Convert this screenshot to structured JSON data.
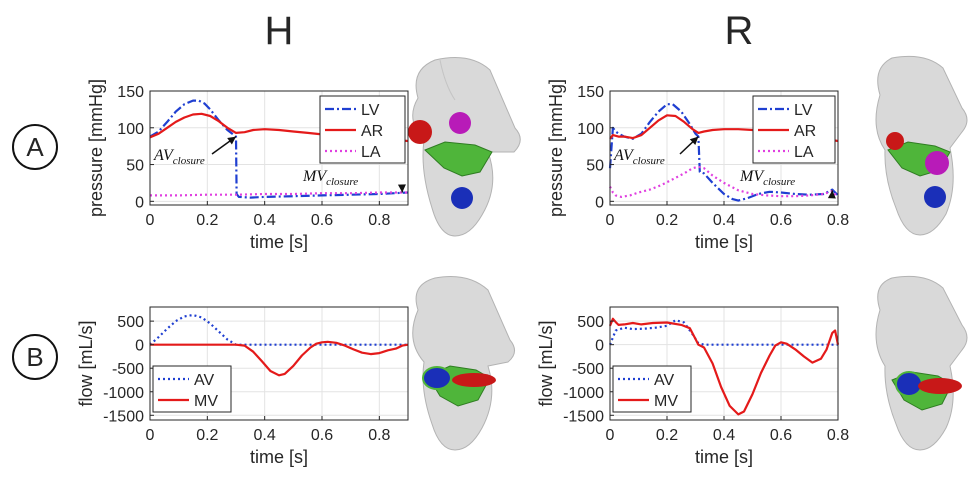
{
  "columns": [
    "H",
    "R"
  ],
  "rows": [
    "A",
    "B"
  ],
  "chart_data": [
    {
      "id": "H-pressure",
      "type": "line",
      "xlabel": "time [s]",
      "ylabel": "pressure [mmHg]",
      "xlim": [
        0,
        0.9
      ],
      "ylim": [
        -5,
        150
      ],
      "xticks": [
        0,
        0.2,
        0.4,
        0.6,
        0.8
      ],
      "yticks": [
        0,
        50,
        100,
        150
      ],
      "grid": true,
      "legend": "top-right",
      "series": [
        {
          "name": "LV",
          "color": "#1f3fd1",
          "dash": "dashdot",
          "x": [
            0,
            0.03,
            0.06,
            0.09,
            0.12,
            0.15,
            0.17,
            0.19,
            0.21,
            0.24,
            0.27,
            0.29,
            0.3,
            0.302,
            0.31,
            0.35,
            0.4,
            0.5,
            0.6,
            0.7,
            0.8,
            0.9
          ],
          "y": [
            88,
            95,
            108,
            122,
            132,
            137,
            137,
            133,
            125,
            110,
            97,
            91,
            88,
            10,
            6,
            5,
            6,
            7,
            8,
            9,
            10,
            12
          ]
        },
        {
          "name": "AR",
          "color": "#e41a1a",
          "dash": "solid",
          "x": [
            0,
            0.03,
            0.06,
            0.09,
            0.12,
            0.15,
            0.18,
            0.21,
            0.24,
            0.27,
            0.3,
            0.33,
            0.36,
            0.4,
            0.45,
            0.5,
            0.55,
            0.6,
            0.7,
            0.8,
            0.9
          ],
          "y": [
            87,
            92,
            100,
            108,
            114,
            118,
            119,
            116,
            109,
            100,
            93,
            94,
            97,
            98,
            97,
            95,
            93,
            91,
            88,
            85,
            82
          ]
        },
        {
          "name": "LA",
          "color": "#e040e0",
          "dash": "dotted",
          "x": [
            0,
            0.1,
            0.2,
            0.3,
            0.4,
            0.5,
            0.6,
            0.7,
            0.8,
            0.9
          ],
          "y": [
            8,
            8,
            9,
            9,
            10,
            10,
            11,
            11,
            12,
            12
          ]
        }
      ],
      "annotations": [
        {
          "label": "AV",
          "sub": "closure",
          "at": [
            0.3,
            88
          ]
        },
        {
          "label": "MV",
          "sub": "closure",
          "at": [
            0.88,
            12
          ]
        }
      ]
    },
    {
      "id": "R-pressure",
      "type": "line",
      "xlabel": "time [s]",
      "ylabel": "pressure [mmHg]",
      "xlim": [
        0,
        0.8
      ],
      "ylim": [
        -5,
        150
      ],
      "xticks": [
        0,
        0.2,
        0.4,
        0.6,
        0.8
      ],
      "yticks": [
        0,
        50,
        100,
        150
      ],
      "grid": true,
      "legend": "top-right",
      "series": [
        {
          "name": "LV",
          "color": "#1f3fd1",
          "dash": "dashdot",
          "x": [
            0,
            0.01,
            0.02,
            0.03,
            0.05,
            0.08,
            0.11,
            0.14,
            0.17,
            0.2,
            0.22,
            0.25,
            0.28,
            0.3,
            0.31,
            0.315,
            0.33,
            0.36,
            0.4,
            0.43,
            0.45,
            0.48,
            0.52,
            0.56,
            0.6,
            0.65,
            0.7,
            0.75,
            0.78,
            0.8
          ],
          "y": [
            45,
            100,
            95,
            92,
            88,
            85,
            92,
            108,
            122,
            132,
            132,
            122,
            105,
            92,
            88,
            40,
            38,
            25,
            10,
            3,
            1,
            4,
            10,
            13,
            12,
            10,
            9,
            10,
            16,
            8
          ]
        },
        {
          "name": "AR",
          "color": "#e41a1a",
          "dash": "solid",
          "x": [
            0,
            0.01,
            0.03,
            0.05,
            0.08,
            0.11,
            0.14,
            0.17,
            0.2,
            0.23,
            0.26,
            0.29,
            0.31,
            0.33,
            0.36,
            0.4,
            0.45,
            0.5,
            0.55,
            0.6,
            0.65,
            0.7,
            0.75,
            0.8
          ],
          "y": [
            85,
            90,
            88,
            88,
            86,
            90,
            100,
            110,
            117,
            116,
            108,
            98,
            93,
            95,
            97,
            98,
            98,
            97,
            95,
            92,
            90,
            88,
            85,
            82
          ]
        },
        {
          "name": "LA",
          "color": "#e040e0",
          "dash": "dotted",
          "x": [
            0,
            0.01,
            0.02,
            0.04,
            0.07,
            0.1,
            0.14,
            0.18,
            0.22,
            0.26,
            0.29,
            0.31,
            0.33,
            0.36,
            0.4,
            0.45,
            0.5,
            0.55,
            0.6,
            0.65,
            0.7,
            0.75,
            0.78,
            0.8
          ],
          "y": [
            20,
            12,
            8,
            6,
            8,
            12,
            16,
            22,
            30,
            38,
            45,
            47,
            45,
            35,
            25,
            15,
            10,
            8,
            7,
            7,
            8,
            10,
            14,
            5
          ]
        }
      ],
      "annotations": [
        {
          "label": "AV",
          "sub": "closure",
          "at": [
            0.31,
            88
          ]
        },
        {
          "label": "MV",
          "sub": "closure",
          "at": [
            0.78,
            15
          ]
        }
      ]
    },
    {
      "id": "H-flow",
      "type": "line",
      "xlabel": "time [s]",
      "ylabel": "flow [mL/s]",
      "xlim": [
        0,
        0.9
      ],
      "ylim": [
        -1600,
        800
      ],
      "xticks": [
        0,
        0.2,
        0.4,
        0.6,
        0.8
      ],
      "yticks": [
        -1500,
        -1000,
        -500,
        0,
        500
      ],
      "grid": true,
      "legend": "bottom-left",
      "series": [
        {
          "name": "AV",
          "color": "#1f3fd1",
          "dash": "dotted",
          "x": [
            0,
            0.03,
            0.06,
            0.09,
            0.12,
            0.15,
            0.18,
            0.21,
            0.24,
            0.27,
            0.3,
            0.33,
            0.9
          ],
          "y": [
            0,
            160,
            340,
            500,
            600,
            630,
            580,
            450,
            280,
            110,
            0,
            0,
            0
          ]
        },
        {
          "name": "MV",
          "color": "#e41a1a",
          "dash": "solid",
          "x": [
            0,
            0.3,
            0.33,
            0.36,
            0.39,
            0.42,
            0.45,
            0.47,
            0.5,
            0.53,
            0.56,
            0.58,
            0.6,
            0.62,
            0.65,
            0.68,
            0.71,
            0.74,
            0.77,
            0.8,
            0.83,
            0.86,
            0.88,
            0.9
          ],
          "y": [
            0,
            0,
            -20,
            -150,
            -350,
            -560,
            -650,
            -620,
            -450,
            -230,
            -60,
            20,
            50,
            60,
            40,
            -20,
            -100,
            -170,
            -200,
            -180,
            -120,
            -80,
            -20,
            0
          ]
        }
      ]
    },
    {
      "id": "R-flow",
      "type": "line",
      "xlabel": "time [s]",
      "ylabel": "flow [mL/s]",
      "xlim": [
        0,
        0.8
      ],
      "ylim": [
        -1600,
        800
      ],
      "xticks": [
        0,
        0.2,
        0.4,
        0.6,
        0.8
      ],
      "yticks": [
        -1500,
        -1000,
        -500,
        0,
        500
      ],
      "grid": true,
      "legend": "top-left",
      "series": [
        {
          "name": "AV",
          "color": "#1f3fd1",
          "dash": "dotted",
          "x": [
            0,
            0.02,
            0.05,
            0.08,
            0.12,
            0.16,
            0.2,
            0.23,
            0.26,
            0.29,
            0.31,
            0.33,
            0.8
          ],
          "y": [
            0,
            300,
            360,
            330,
            340,
            360,
            400,
            520,
            470,
            220,
            30,
            0,
            0
          ]
        },
        {
          "name": "MV",
          "color": "#e41a1a",
          "dash": "solid",
          "x": [
            0,
            0.01,
            0.02,
            0.03,
            0.05,
            0.08,
            0.11,
            0.15,
            0.2,
            0.25,
            0.28,
            0.3,
            0.31,
            0.33,
            0.36,
            0.39,
            0.42,
            0.45,
            0.47,
            0.5,
            0.53,
            0.56,
            0.58,
            0.6,
            0.62,
            0.65,
            0.68,
            0.71,
            0.74,
            0.76,
            0.78,
            0.79,
            0.8
          ],
          "y": [
            400,
            550,
            480,
            420,
            430,
            460,
            430,
            460,
            470,
            420,
            350,
            120,
            0,
            -60,
            -400,
            -900,
            -1300,
            -1480,
            -1420,
            -1050,
            -600,
            -230,
            -20,
            50,
            20,
            -100,
            -250,
            -380,
            -300,
            -100,
            250,
            300,
            0
          ]
        }
      ]
    }
  ]
}
